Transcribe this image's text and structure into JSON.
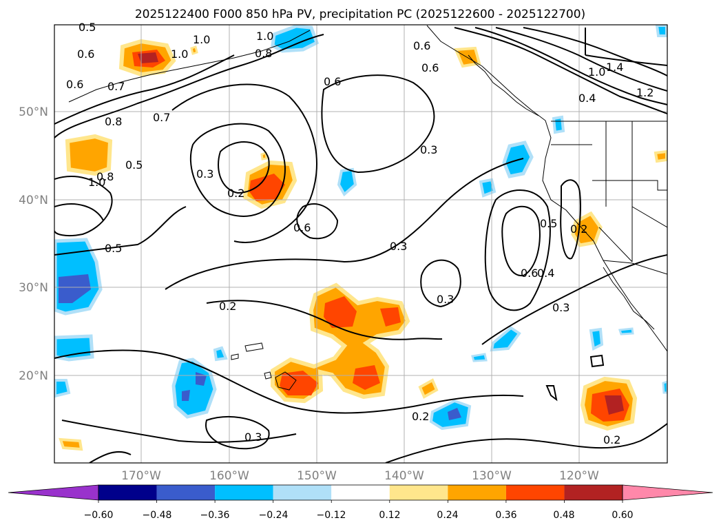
{
  "title": "2025122400 F000 850 hPa PV, precipitation PC (2025122600 - 2025122700)",
  "map": {
    "lat_ticks": [
      "50°N",
      "40°N",
      "30°N",
      "20°N"
    ],
    "lon_ticks": [
      "170°W",
      "160°W",
      "150°W",
      "140°W",
      "130°W",
      "120°W"
    ],
    "grid": true,
    "contour_labels": [
      {
        "text": "0.5"
      },
      {
        "text": "0.6"
      },
      {
        "text": "1.0"
      },
      {
        "text": "1.0"
      },
      {
        "text": "1.0"
      },
      {
        "text": "0.8"
      },
      {
        "text": "0.6"
      },
      {
        "text": "0.7"
      },
      {
        "text": "0.6"
      },
      {
        "text": "0.6"
      },
      {
        "text": "0.6"
      },
      {
        "text": "1.4"
      },
      {
        "text": "1.0"
      },
      {
        "text": "1.2"
      },
      {
        "text": "0.4"
      },
      {
        "text": "0.7"
      },
      {
        "text": "0.8"
      },
      {
        "text": "0.5"
      },
      {
        "text": "1.0"
      },
      {
        "text": "0.8"
      },
      {
        "text": "0.3"
      },
      {
        "text": "0.2"
      },
      {
        "text": "0.6"
      },
      {
        "text": "0.3"
      },
      {
        "text": "0.5"
      },
      {
        "text": "0.3"
      },
      {
        "text": "0.5"
      },
      {
        "text": "0.2"
      },
      {
        "text": "0.6"
      },
      {
        "text": "0.4"
      },
      {
        "text": "0.3"
      },
      {
        "text": "0.3"
      },
      {
        "text": "0.2"
      },
      {
        "text": "0.2"
      },
      {
        "text": "0.3"
      },
      {
        "text": "0.2"
      }
    ]
  },
  "colorbar": {
    "ticks": [
      "−0.60",
      "−0.48",
      "−0.36",
      "−0.24",
      "−0.12",
      "0.12",
      "0.24",
      "0.36",
      "0.48",
      "0.60"
    ],
    "bins": [
      {
        "color": "#9932cc"
      },
      {
        "color": "#00008b"
      },
      {
        "color": "#3a5ccc"
      },
      {
        "color": "#00bfff"
      },
      {
        "color": "#b0e0f8"
      },
      {
        "color": "#ffffff"
      },
      {
        "color": "#ffe68c"
      },
      {
        "color": "#ffa500"
      },
      {
        "color": "#ff4500"
      },
      {
        "color": "#b22222"
      },
      {
        "color": "#ff88aa"
      }
    ]
  },
  "colors": {
    "grid": "#b0b0b0",
    "contour": "#000000",
    "tick_label": "#808080"
  }
}
